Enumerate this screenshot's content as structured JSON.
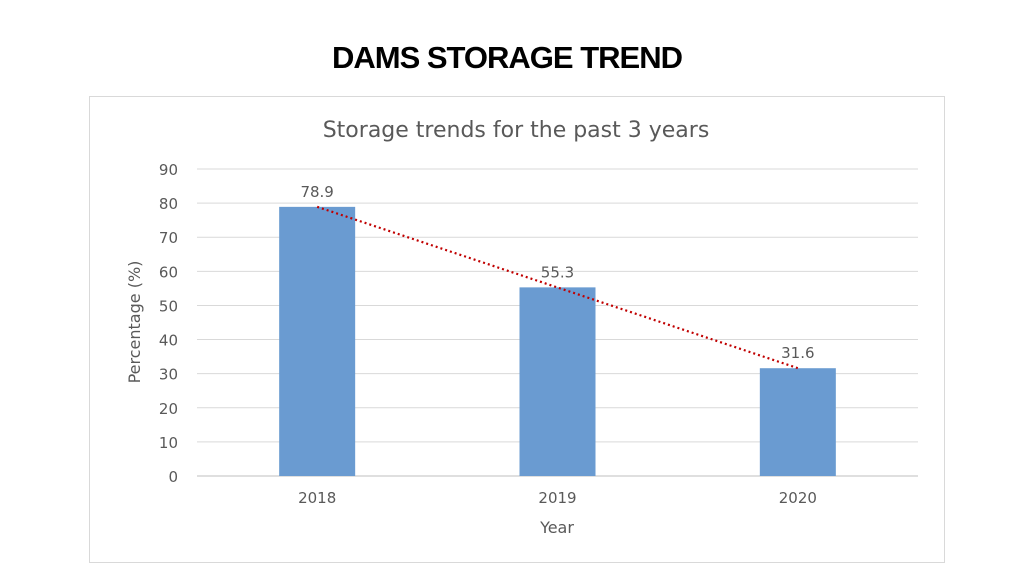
{
  "page_title": "DAMS STORAGE TREND",
  "chart_data": {
    "type": "bar",
    "title": "Storage trends for the past  3 years",
    "categories": [
      "2018",
      "2019",
      "2020"
    ],
    "values": [
      78.9,
      55.3,
      31.6
    ],
    "data_labels": [
      "78.9",
      "55.3",
      "31.6"
    ],
    "xlabel": "Year",
    "ylabel": "Percentage (%)",
    "ylim": [
      0,
      90
    ],
    "yticks": [
      0,
      10,
      20,
      30,
      40,
      50,
      60,
      70,
      80,
      90
    ],
    "grid": true,
    "trendline": {
      "type": "linear",
      "style": "dotted",
      "color": "#c00000"
    },
    "bar_color": "#6a9bd1"
  }
}
